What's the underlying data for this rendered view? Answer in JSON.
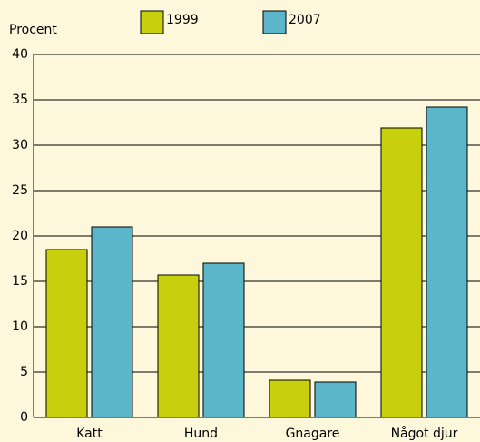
{
  "chart_data": {
    "type": "bar",
    "ylabel": "Procent",
    "categories": [
      "Katt",
      "Hund",
      "Gnagare",
      "Något djur"
    ],
    "series": [
      {
        "name": "1999",
        "color": "#c8cf0c",
        "values": [
          18.5,
          15.7,
          4.1,
          31.9
        ]
      },
      {
        "name": "2007",
        "color": "#5cb6c9",
        "values": [
          21,
          17,
          3.9,
          34.2
        ]
      }
    ],
    "ylim": [
      0,
      40
    ],
    "yticks": [
      0,
      5,
      10,
      15,
      20,
      25,
      30,
      35,
      40
    ],
    "grid": true
  }
}
